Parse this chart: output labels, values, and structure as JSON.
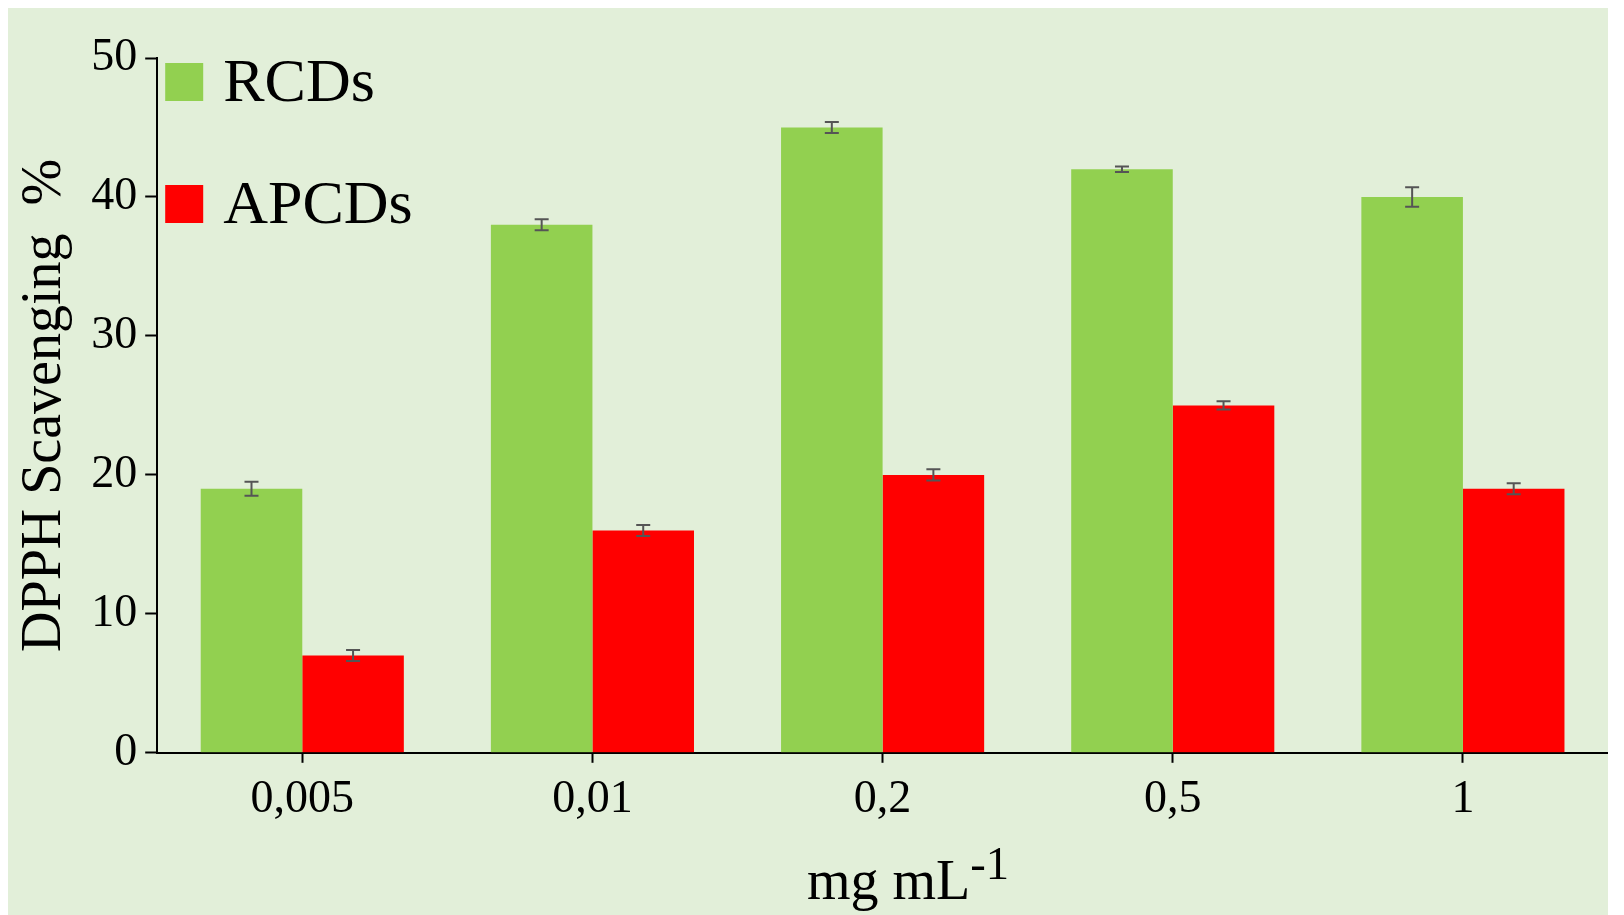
{
  "chart_data": {
    "type": "bar",
    "xlabel": "mg mL$^{-1}$",
    "ylabel": "DPPH Scavenging  %",
    "categories": [
      "0,005",
      "0,01",
      "0,2",
      "0,5",
      "1"
    ],
    "series": [
      {
        "name": "RCDs",
        "color": "#92d050",
        "values": [
          19,
          38,
          45,
          42,
          40
        ],
        "errors": [
          0.5,
          0.4,
          0.4,
          0.2,
          0.7
        ]
      },
      {
        "name": "APCDs",
        "color": "#ff0000",
        "values": [
          7,
          16,
          20,
          25,
          19
        ],
        "errors": [
          0.4,
          0.4,
          0.4,
          0.3,
          0.4
        ]
      }
    ],
    "ylim": [
      0,
      50
    ],
    "yticks": [
      0,
      10,
      20,
      30,
      40,
      50
    ],
    "grid": false,
    "legend": "top left"
  }
}
